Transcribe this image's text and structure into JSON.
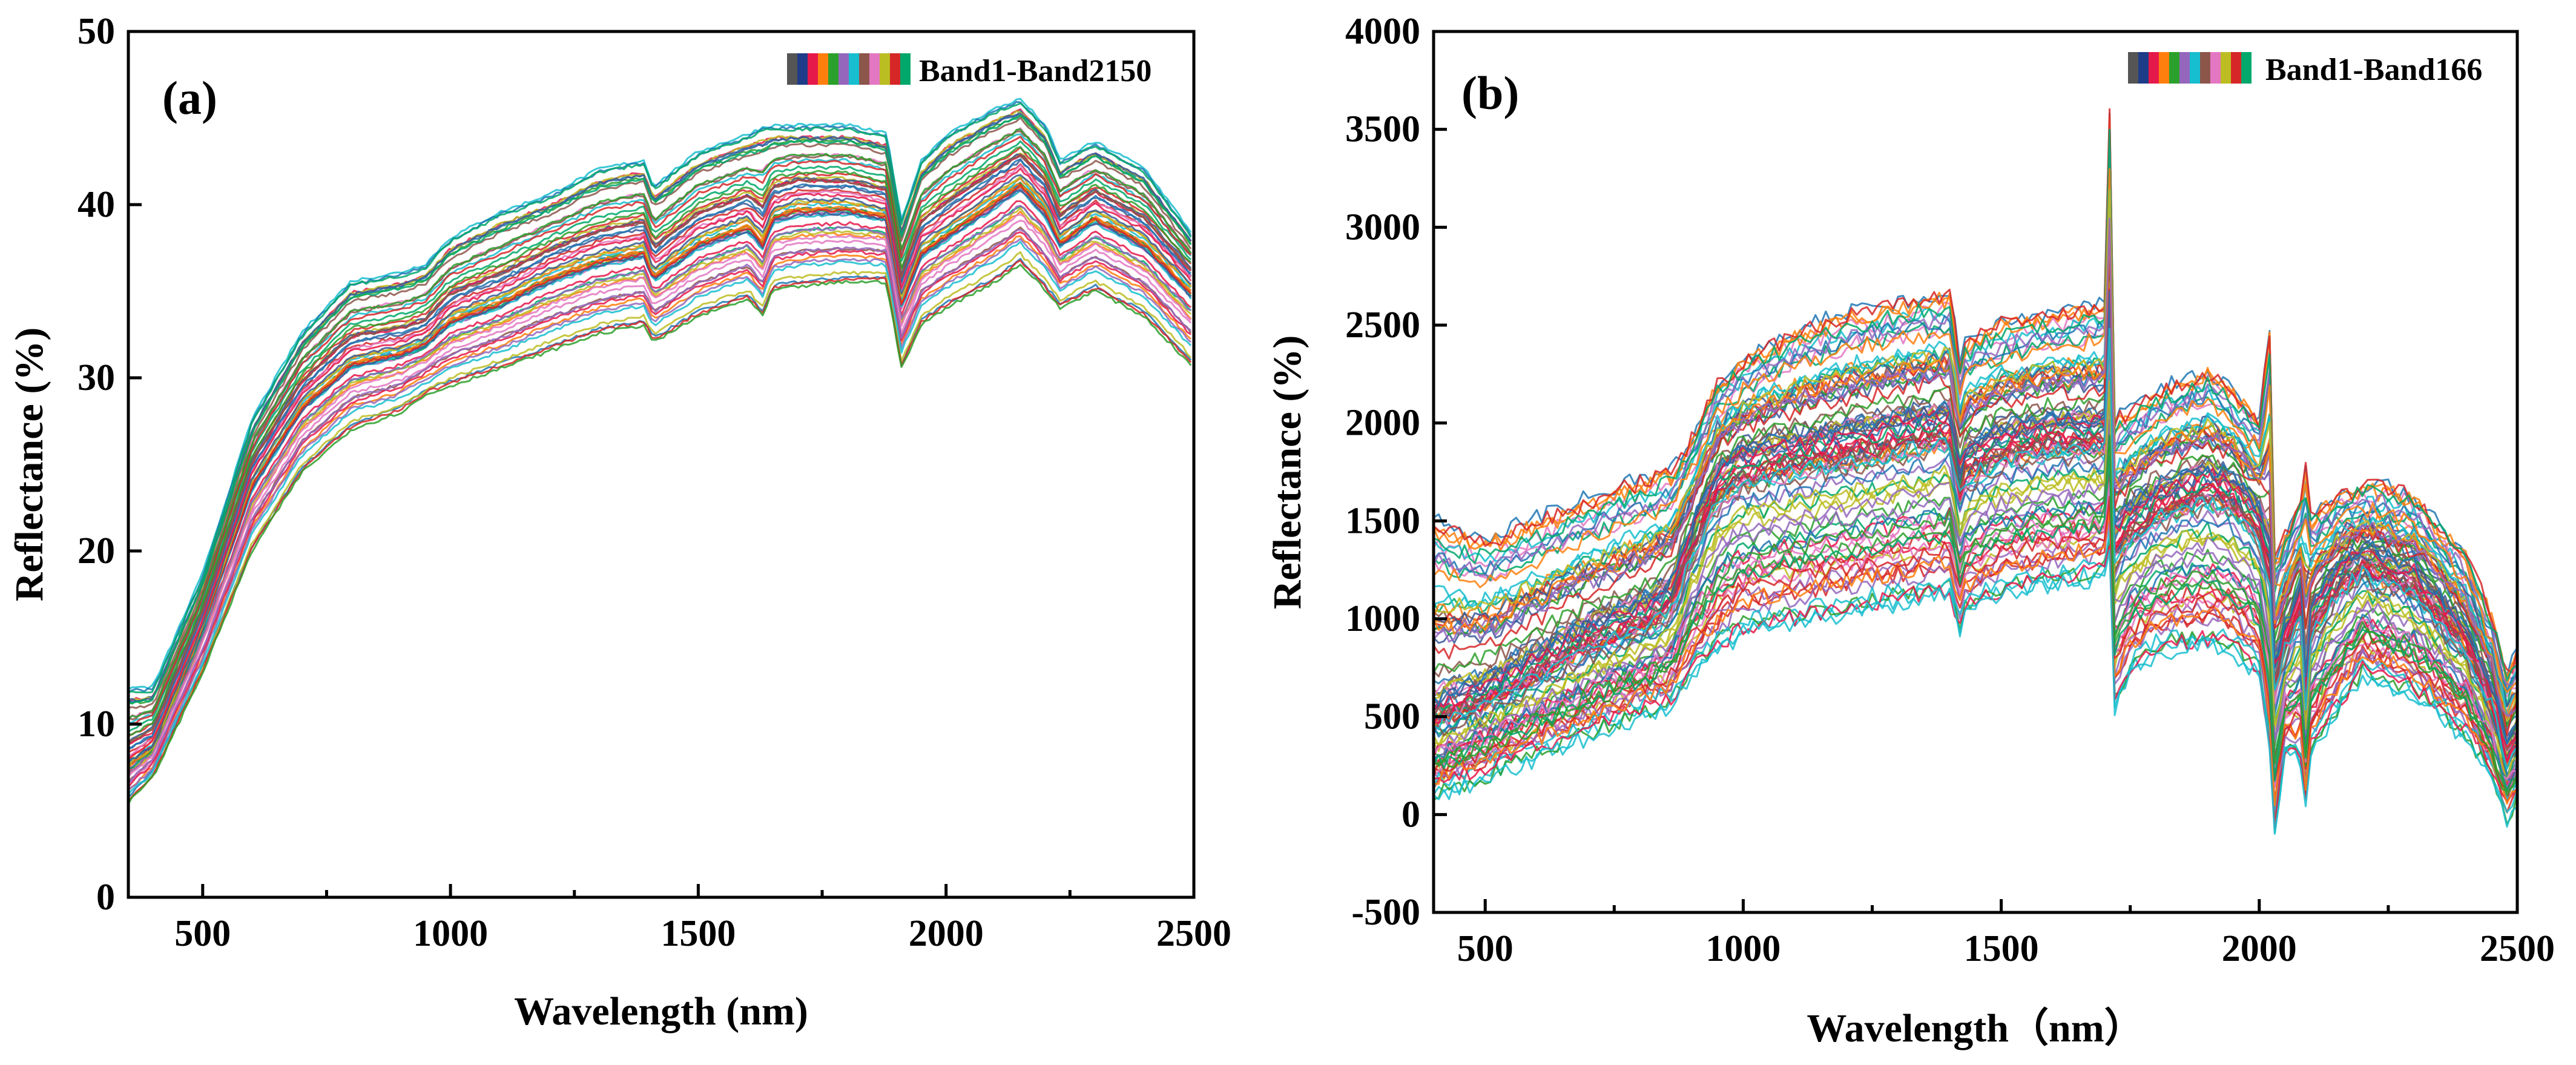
{
  "chart_data": [
    {
      "type": "line",
      "panel_label": "(a)",
      "legend": "Band1-Band2150",
      "legend_position": "top-right",
      "xlabel": "Wavelength (nm)",
      "ylabel": "Reflectance (%)",
      "xlim": [
        350,
        2500
      ],
      "ylim": [
        0,
        50
      ],
      "xticks": [
        500,
        1000,
        1500,
        2000,
        2500
      ],
      "yticks": [
        0,
        10,
        20,
        30,
        40,
        50
      ],
      "series_summary": {
        "description": "Many overlapping reflectance spectra; values below are representative curves (low, mid, high envelope)",
        "x": [
          350,
          400,
          500,
          600,
          700,
          800,
          900,
          950,
          1000,
          1100,
          1200,
          1300,
          1390,
          1410,
          1500,
          1600,
          1630,
          1650,
          1700,
          1800,
          1880,
          1910,
          1950,
          2000,
          2100,
          2150,
          2200,
          2230,
          2300,
          2400,
          2500
        ],
        "series": [
          {
            "name": "low",
            "values": [
              5.5,
              7,
              13,
              20,
              24.5,
              27,
              28,
              29,
              29.5,
              30.5,
              31.5,
              32.5,
              33,
              32,
              33.5,
              34.5,
              33.5,
              35,
              35.2,
              35.5,
              35.5,
              30.5,
              33,
              34,
              35.5,
              36.5,
              35,
              34,
              35,
              33.5,
              30.5
            ]
          },
          {
            "name": "mid",
            "values": [
              8,
              9,
              16,
              24.5,
              29,
              31.5,
              32,
              32.5,
              34,
              35,
              36.5,
              37.5,
              38,
              36.5,
              38.5,
              39.5,
              38.5,
              40,
              40.5,
              40.5,
              40,
              35,
              38,
              39,
              41,
              42,
              40.5,
              38.5,
              40,
              38.5,
              35.5
            ]
          },
          {
            "name": "high",
            "values": [
              12,
              12,
              18.5,
              27.5,
              32.5,
              35.5,
              36,
              36.5,
              38,
              39.5,
              40.5,
              42,
              42.5,
              41,
              43,
              44,
              44.5,
              44.5,
              44.5,
              44.5,
              44,
              39,
              42.5,
              44,
              45.5,
              46,
              44.5,
              42.5,
              43.5,
              42,
              38
            ]
          }
        ]
      }
    },
    {
      "type": "line",
      "panel_label": "(b)",
      "legend": "Band1-Band166",
      "legend_position": "top-right",
      "xlabel": "Wavelength（nm）",
      "ylabel": "Reflectance (%)",
      "xlim": [
        400,
        2500
      ],
      "ylim": [
        -500,
        4000
      ],
      "xticks": [
        500,
        1000,
        1500,
        2000,
        2500
      ],
      "yticks": [
        -500,
        0,
        500,
        1000,
        1500,
        2000,
        2500,
        3000,
        3500,
        4000
      ],
      "series_summary": {
        "description": "Many overlapping reflectance spectra with sharp peaks near 1710, 1900, 2020 and 2090 nm; values below are representative curves",
        "x": [
          400,
          450,
          500,
          600,
          700,
          800,
          860,
          900,
          950,
          1000,
          1100,
          1200,
          1300,
          1400,
          1420,
          1430,
          1500,
          1600,
          1700,
          1710,
          1720,
          1750,
          1800,
          1900,
          1950,
          2000,
          2020,
          2030,
          2050,
          2080,
          2090,
          2100,
          2150,
          2200,
          2250,
          2300,
          2400,
          2450,
          2480,
          2500
        ],
        "series": [
          {
            "name": "low",
            "values": [
              100,
              150,
              200,
              300,
              400,
              500,
              550,
              700,
              800,
              900,
              950,
              1000,
              1050,
              1100,
              900,
              1000,
              1100,
              1150,
              1200,
              1300,
              500,
              700,
              800,
              850,
              800,
              700,
              300,
              -100,
              300,
              250,
              50,
              300,
              500,
              700,
              650,
              600,
              400,
              200,
              0,
              100
            ]
          },
          {
            "name": "mid",
            "values": [
              500,
              550,
              600,
              750,
              900,
              1000,
              1100,
              1400,
              1700,
              1800,
              1850,
              1900,
              1950,
              2000,
              1700,
              1800,
              1900,
              1950,
              1950,
              2600,
              1400,
              1500,
              1600,
              1700,
              1650,
              1500,
              1300,
              700,
              900,
              1100,
              600,
              1000,
              1200,
              1300,
              1250,
              1200,
              900,
              600,
              300,
              400
            ]
          },
          {
            "name": "high",
            "values": [
              1500,
              1450,
              1400,
              1500,
              1600,
              1700,
              1750,
              1900,
              2200,
              2300,
              2450,
              2550,
              2600,
              2650,
              2300,
              2400,
              2500,
              2550,
              2600,
              3600,
              2000,
              2050,
              2150,
              2250,
              2150,
              2000,
              2500,
              1300,
              1400,
              1600,
              1800,
              1500,
              1600,
              1650,
              1650,
              1600,
              1300,
              1000,
              700,
              800
            ]
          }
        ]
      }
    }
  ],
  "colors": [
    "#1f77b4",
    "#d62728",
    "#2ca02c",
    "#ff7f0e",
    "#9467bd",
    "#17becf",
    "#8c564b",
    "#e377c2",
    "#bcbd22",
    "#3b5998",
    "#e6194b",
    "#00a86b"
  ],
  "legend_swatch_colors": [
    "#555555",
    "#1f3c88",
    "#e6194b",
    "#ff7f0e",
    "#2ca02c",
    "#9467bd",
    "#17becf",
    "#8c564b",
    "#e377c2",
    "#bcbd22",
    "#d62728",
    "#00a86b"
  ]
}
